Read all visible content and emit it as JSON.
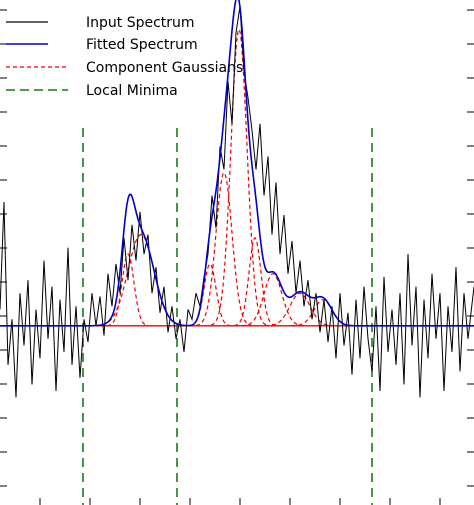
{
  "chart_data": {
    "type": "line",
    "title": "",
    "xlabel": "",
    "ylabel": "",
    "xlim": [
      0,
      474
    ],
    "ylim": [
      -0.55,
      1.0
    ],
    "grid": false,
    "legend": {
      "placement": "top-left",
      "entries": [
        {
          "label": "Input Spectrum",
          "color": "#000000",
          "style": "solid"
        },
        {
          "label": "Fitted Spectrum",
          "color": "#0000cc",
          "style": "solid"
        },
        {
          "label": "Component Gaussians",
          "color": "#ee0000",
          "style": "dashed"
        },
        {
          "label": "Local Minima",
          "color": "#1a7a1a",
          "style": "dashed"
        }
      ]
    },
    "local_minima": [
      83,
      177,
      372
    ],
    "gaussians": [
      {
        "center": 128,
        "amplitude": 0.22,
        "sigma": 6
      },
      {
        "center": 141,
        "amplitude": 0.28,
        "sigma": 13
      },
      {
        "center": 210,
        "amplitude": 0.19,
        "sigma": 6
      },
      {
        "center": 224,
        "amplitude": 0.47,
        "sigma": 8
      },
      {
        "center": 239,
        "amplitude": 0.91,
        "sigma": 8
      },
      {
        "center": 255,
        "amplitude": 0.27,
        "sigma": 6
      },
      {
        "center": 273,
        "amplitude": 0.16,
        "sigma": 9
      },
      {
        "center": 300,
        "amplitude": 0.1,
        "sigma": 10
      },
      {
        "center": 323,
        "amplitude": 0.08,
        "sigma": 9
      }
    ],
    "input_spectrum": [
      [
        0,
        0.05
      ],
      [
        4,
        0.38
      ],
      [
        8,
        -0.12
      ],
      [
        12,
        0.02
      ],
      [
        16,
        -0.22
      ],
      [
        20,
        0.1
      ],
      [
        24,
        -0.06
      ],
      [
        28,
        0.14
      ],
      [
        32,
        -0.18
      ],
      [
        36,
        0.05
      ],
      [
        40,
        -0.1
      ],
      [
        44,
        0.2
      ],
      [
        48,
        -0.04
      ],
      [
        52,
        0.12
      ],
      [
        56,
        -0.2
      ],
      [
        60,
        0.08
      ],
      [
        64,
        -0.08
      ],
      [
        68,
        0.24
      ],
      [
        72,
        -0.12
      ],
      [
        76,
        0.06
      ],
      [
        80,
        -0.16
      ],
      [
        84,
        0.02
      ],
      [
        88,
        -0.05
      ],
      [
        92,
        0.1
      ],
      [
        96,
        0.0
      ],
      [
        100,
        0.09
      ],
      [
        104,
        -0.03
      ],
      [
        108,
        0.16
      ],
      [
        112,
        0.06
      ],
      [
        116,
        0.19
      ],
      [
        120,
        0.1
      ],
      [
        124,
        0.27
      ],
      [
        128,
        0.14
      ],
      [
        132,
        0.31
      ],
      [
        136,
        0.2
      ],
      [
        140,
        0.35
      ],
      [
        144,
        0.22
      ],
      [
        148,
        0.28
      ],
      [
        152,
        0.1
      ],
      [
        156,
        0.18
      ],
      [
        160,
        0.04
      ],
      [
        164,
        0.12
      ],
      [
        168,
        -0.02
      ],
      [
        172,
        0.06
      ],
      [
        176,
        -0.04
      ],
      [
        180,
        0.02
      ],
      [
        184,
        -0.08
      ],
      [
        188,
        0.05
      ],
      [
        192,
        0.02
      ],
      [
        196,
        0.1
      ],
      [
        200,
        0.06
      ],
      [
        204,
        0.15
      ],
      [
        208,
        0.22
      ],
      [
        212,
        0.4
      ],
      [
        216,
        0.3
      ],
      [
        220,
        0.55
      ],
      [
        224,
        0.48
      ],
      [
        228,
        0.75
      ],
      [
        232,
        0.62
      ],
      [
        236,
        0.9
      ],
      [
        240,
        0.98
      ],
      [
        244,
        0.78
      ],
      [
        248,
        0.7
      ],
      [
        252,
        0.6
      ],
      [
        256,
        0.48
      ],
      [
        260,
        0.62
      ],
      [
        264,
        0.4
      ],
      [
        268,
        0.52
      ],
      [
        272,
        0.28
      ],
      [
        276,
        0.44
      ],
      [
        280,
        0.22
      ],
      [
        284,
        0.34
      ],
      [
        288,
        0.16
      ],
      [
        292,
        0.26
      ],
      [
        296,
        0.1
      ],
      [
        300,
        0.2
      ],
      [
        304,
        0.06
      ],
      [
        308,
        0.14
      ],
      [
        312,
        0.02
      ],
      [
        316,
        0.1
      ],
      [
        320,
        -0.02
      ],
      [
        324,
        0.08
      ],
      [
        328,
        -0.05
      ],
      [
        332,
        0.06
      ],
      [
        336,
        -0.1
      ],
      [
        340,
        0.1
      ],
      [
        344,
        -0.06
      ],
      [
        348,
        0.04
      ],
      [
        352,
        -0.15
      ],
      [
        356,
        0.08
      ],
      [
        360,
        -0.1
      ],
      [
        364,
        0.12
      ],
      [
        368,
        -0.04
      ],
      [
        372,
        -0.14
      ],
      [
        376,
        0.06
      ],
      [
        380,
        -0.2
      ],
      [
        384,
        0.15
      ],
      [
        388,
        -0.08
      ],
      [
        392,
        0.05
      ],
      [
        396,
        -0.12
      ],
      [
        400,
        0.1
      ],
      [
        404,
        -0.18
      ],
      [
        408,
        0.22
      ],
      [
        412,
        -0.06
      ],
      [
        416,
        0.12
      ],
      [
        420,
        -0.22
      ],
      [
        424,
        0.08
      ],
      [
        428,
        -0.1
      ],
      [
        432,
        0.16
      ],
      [
        436,
        -0.04
      ],
      [
        440,
        0.1
      ],
      [
        444,
        -0.2
      ],
      [
        448,
        0.06
      ],
      [
        452,
        -0.08
      ],
      [
        456,
        0.18
      ],
      [
        460,
        -0.14
      ],
      [
        464,
        0.1
      ],
      [
        468,
        -0.04
      ],
      [
        474,
        0.12
      ]
    ]
  }
}
